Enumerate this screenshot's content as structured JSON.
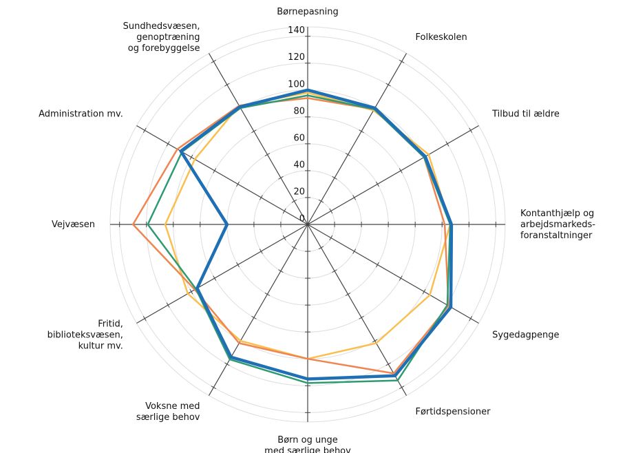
{
  "chart_data": {
    "type": "radar",
    "categories": [
      [
        "Børnepasning"
      ],
      [
        "Folkeskolen"
      ],
      [
        "Tilbud til ældre"
      ],
      [
        "Kontanthjælp og",
        "arbejdsmarkeds-",
        "foranstaltninger"
      ],
      [
        "Sygedagpenge"
      ],
      [
        "Førtidspensioner"
      ],
      [
        "Børn og unge",
        "med særlige behov"
      ],
      [
        "Voksne med",
        "særlige behov"
      ],
      [
        "Fritid,",
        "biblioteksvæsen,",
        "kultur mv."
      ],
      [
        "Vejvæsen"
      ],
      [
        "Administration mv."
      ],
      [
        "Sundhedsvæsen,",
        "genoptræning",
        "og forebyggelse"
      ]
    ],
    "series": [
      {
        "color": "#fbbf4f",
        "values": [
          98,
          98,
          104,
          106,
          105,
          102,
          100,
          100,
          103,
          106,
          97,
          102
        ]
      },
      {
        "color": "#ef8551",
        "values": [
          94,
          99,
          100,
          102,
          121,
          128,
          100,
          102,
          97,
          130,
          112,
          102
        ]
      },
      {
        "color": "#2e9a72",
        "values": [
          96,
          99,
          100,
          106,
          120,
          134,
          118,
          116,
          96,
          119,
          108,
          100
        ]
      },
      {
        "color": "#1f6fb5",
        "values": [
          100,
          100,
          101,
          107,
          123,
          130,
          115,
          114,
          95,
          60,
          109,
          101
        ]
      }
    ],
    "ylim": [
      0,
      147
    ],
    "yticks": [
      0,
      20,
      40,
      60,
      80,
      100,
      120,
      140
    ],
    "grid": true
  }
}
